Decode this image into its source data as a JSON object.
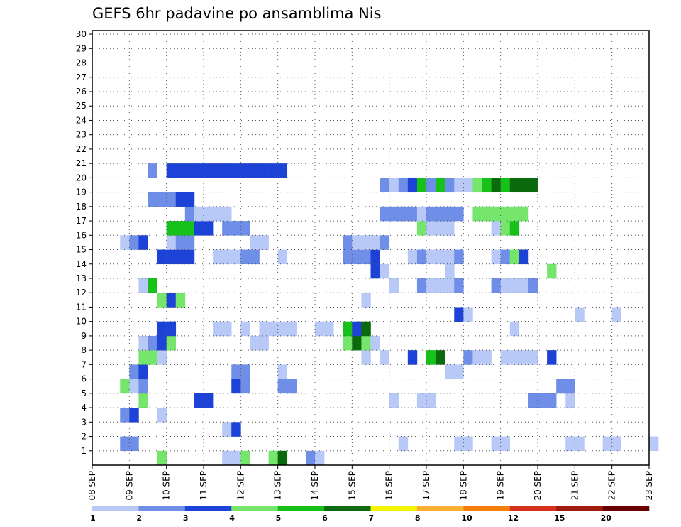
{
  "chart_data": {
    "type": "heatmap",
    "title": "GEFS 6hr padavine po ansamblima Nis",
    "x_ticks": [
      "08 SEP",
      "09 SEP",
      "10 SEP",
      "11 SEP",
      "12 SEP",
      "13 SEP",
      "14 SEP",
      "15 SEP",
      "16 SEP",
      "17 SEP",
      "18 SEP",
      "19 SEP",
      "20 SEP",
      "21 SEP",
      "22 SEP",
      "23 SEP"
    ],
    "y_ticks": [
      "1",
      "2",
      "3",
      "4",
      "5",
      "6",
      "7",
      "8",
      "9",
      "10",
      "11",
      "12",
      "13",
      "14",
      "15",
      "16",
      "17",
      "18",
      "19",
      "20",
      "21",
      "22",
      "23",
      "24",
      "25",
      "26",
      "27",
      "28",
      "29",
      "30"
    ],
    "xlim_steps": [
      0,
      60
    ],
    "ylim": [
      0,
      30
    ],
    "grid": true,
    "colorbar": {
      "labels": [
        "1",
        "2",
        "3",
        "4",
        "5",
        "6",
        "7",
        "8",
        "10",
        "12",
        "15",
        "20"
      ],
      "colors": [
        "#b9c9f7",
        "#6f8ee8",
        "#1c42d8",
        "#76e56c",
        "#16c21a",
        "#0a6a0c",
        "#f4f400",
        "#fbb034",
        "#f57e0c",
        "#d7301c",
        "#a01a0a",
        "#6a0000"
      ]
    },
    "members": [
      {
        "y": 0,
        "cells": [
          [
            7,
            4
          ],
          [
            14,
            1
          ],
          [
            15,
            1
          ],
          [
            16,
            4
          ],
          [
            19,
            4
          ],
          [
            20,
            6
          ],
          [
            23,
            2
          ],
          [
            24,
            1
          ]
        ]
      },
      {
        "y": 1,
        "cells": [
          [
            3,
            2
          ],
          [
            4,
            2
          ],
          [
            33,
            1
          ],
          [
            39,
            1
          ],
          [
            40,
            1
          ],
          [
            43,
            1
          ],
          [
            44,
            1
          ],
          [
            51,
            1
          ],
          [
            52,
            1
          ],
          [
            55,
            1
          ],
          [
            56,
            1
          ],
          [
            60,
            1
          ]
        ]
      },
      {
        "y": 2,
        "cells": [
          [
            14,
            1
          ],
          [
            15,
            3
          ]
        ]
      },
      {
        "y": 3,
        "cells": [
          [
            3,
            2
          ],
          [
            4,
            3
          ],
          [
            7,
            1
          ]
        ]
      },
      {
        "y": 4,
        "cells": [
          [
            5,
            4
          ],
          [
            11,
            3
          ],
          [
            12,
            3
          ],
          [
            32,
            1
          ],
          [
            35,
            1
          ],
          [
            36,
            1
          ],
          [
            47,
            2
          ],
          [
            48,
            2
          ],
          [
            49,
            2
          ],
          [
            51,
            1
          ]
        ]
      },
      {
        "y": 5,
        "cells": [
          [
            3,
            4
          ],
          [
            4,
            1
          ],
          [
            5,
            2
          ],
          [
            15,
            3
          ],
          [
            16,
            2
          ],
          [
            20,
            2
          ],
          [
            21,
            2
          ],
          [
            50,
            2
          ],
          [
            51,
            2
          ]
        ]
      },
      {
        "y": 6,
        "cells": [
          [
            4,
            2
          ],
          [
            5,
            3
          ],
          [
            15,
            2
          ],
          [
            16,
            2
          ],
          [
            20,
            1
          ],
          [
            38,
            1
          ],
          [
            39,
            1
          ]
        ]
      },
      {
        "y": 7,
        "cells": [
          [
            5,
            4
          ],
          [
            6,
            4
          ],
          [
            7,
            1
          ],
          [
            29,
            1
          ],
          [
            31,
            1
          ],
          [
            34,
            3
          ],
          [
            36,
            5
          ],
          [
            37,
            6
          ],
          [
            40,
            2
          ],
          [
            41,
            1
          ],
          [
            42,
            1
          ],
          [
            44,
            1
          ],
          [
            45,
            1
          ],
          [
            46,
            1
          ],
          [
            47,
            1
          ],
          [
            49,
            3
          ]
        ]
      },
      {
        "y": 8,
        "cells": [
          [
            5,
            1
          ],
          [
            6,
            2
          ],
          [
            7,
            3
          ],
          [
            8,
            4
          ],
          [
            17,
            1
          ],
          [
            18,
            1
          ],
          [
            27,
            4
          ],
          [
            28,
            6
          ],
          [
            29,
            4
          ],
          [
            30,
            1
          ]
        ]
      },
      {
        "y": 9,
        "cells": [
          [
            7,
            3
          ],
          [
            8,
            3
          ],
          [
            13,
            1
          ],
          [
            14,
            1
          ],
          [
            16,
            1
          ],
          [
            18,
            1
          ],
          [
            19,
            1
          ],
          [
            20,
            1
          ],
          [
            21,
            1
          ],
          [
            24,
            1
          ],
          [
            25,
            1
          ],
          [
            27,
            5
          ],
          [
            28,
            3
          ],
          [
            29,
            6
          ],
          [
            45,
            1
          ]
        ]
      },
      {
        "y": 10,
        "cells": [
          [
            39,
            3
          ],
          [
            40,
            1
          ],
          [
            52,
            1
          ],
          [
            56,
            1
          ]
        ]
      },
      {
        "y": 11,
        "cells": [
          [
            7,
            4
          ],
          [
            8,
            3
          ],
          [
            9,
            4
          ],
          [
            29,
            1
          ]
        ]
      },
      {
        "y": 12,
        "cells": [
          [
            5,
            1
          ],
          [
            6,
            5
          ],
          [
            32,
            1
          ],
          [
            35,
            2
          ],
          [
            36,
            1
          ],
          [
            37,
            1
          ],
          [
            38,
            1
          ],
          [
            39,
            2
          ],
          [
            43,
            2
          ],
          [
            44,
            1
          ],
          [
            45,
            1
          ],
          [
            46,
            1
          ],
          [
            47,
            2
          ]
        ]
      },
      {
        "y": 13,
        "cells": [
          [
            30,
            3
          ],
          [
            31,
            1
          ],
          [
            38,
            1
          ],
          [
            49,
            4
          ]
        ]
      },
      {
        "y": 14,
        "cells": [
          [
            7,
            3
          ],
          [
            8,
            3
          ],
          [
            9,
            3
          ],
          [
            10,
            3
          ],
          [
            13,
            1
          ],
          [
            14,
            1
          ],
          [
            15,
            1
          ],
          [
            16,
            2
          ],
          [
            17,
            2
          ],
          [
            20,
            1
          ],
          [
            27,
            2
          ],
          [
            28,
            2
          ],
          [
            29,
            2
          ],
          [
            30,
            3
          ],
          [
            34,
            1
          ],
          [
            35,
            2
          ],
          [
            36,
            1
          ],
          [
            37,
            1
          ],
          [
            38,
            1
          ],
          [
            39,
            2
          ],
          [
            43,
            1
          ],
          [
            44,
            2
          ],
          [
            45,
            4
          ],
          [
            46,
            3
          ]
        ]
      },
      {
        "y": 15,
        "cells": [
          [
            3,
            1
          ],
          [
            4,
            2
          ],
          [
            5,
            3
          ],
          [
            8,
            1
          ],
          [
            9,
            2
          ],
          [
            10,
            2
          ],
          [
            17,
            1
          ],
          [
            18,
            1
          ],
          [
            27,
            2
          ],
          [
            28,
            1
          ],
          [
            29,
            1
          ],
          [
            30,
            1
          ],
          [
            31,
            2
          ]
        ]
      },
      {
        "y": 16,
        "cells": [
          [
            8,
            5
          ],
          [
            9,
            5
          ],
          [
            10,
            5
          ],
          [
            11,
            3
          ],
          [
            12,
            3
          ],
          [
            14,
            2
          ],
          [
            15,
            2
          ],
          [
            16,
            2
          ],
          [
            35,
            4
          ],
          [
            36,
            1
          ],
          [
            37,
            1
          ],
          [
            38,
            1
          ],
          [
            43,
            1
          ],
          [
            44,
            4
          ],
          [
            45,
            5
          ]
        ]
      },
      {
        "y": 17,
        "cells": [
          [
            10,
            2
          ],
          [
            11,
            1
          ],
          [
            12,
            1
          ],
          [
            13,
            1
          ],
          [
            14,
            1
          ],
          [
            31,
            2
          ],
          [
            32,
            2
          ],
          [
            33,
            2
          ],
          [
            34,
            2
          ],
          [
            35,
            1
          ],
          [
            36,
            2
          ],
          [
            37,
            2
          ],
          [
            38,
            2
          ],
          [
            39,
            2
          ],
          [
            41,
            4
          ],
          [
            42,
            4
          ],
          [
            43,
            4
          ],
          [
            44,
            4
          ],
          [
            45,
            4
          ],
          [
            46,
            4
          ]
        ]
      },
      {
        "y": 18,
        "cells": [
          [
            6,
            2
          ],
          [
            7,
            2
          ],
          [
            8,
            2
          ],
          [
            9,
            3
          ],
          [
            10,
            3
          ]
        ]
      },
      {
        "y": 19,
        "cells": [
          [
            31,
            2
          ],
          [
            32,
            1
          ],
          [
            33,
            2
          ],
          [
            34,
            3
          ],
          [
            35,
            5
          ],
          [
            36,
            2
          ],
          [
            37,
            5
          ],
          [
            38,
            2
          ],
          [
            39,
            1
          ],
          [
            40,
            1
          ],
          [
            41,
            4
          ],
          [
            42,
            5
          ],
          [
            43,
            6
          ],
          [
            44,
            5
          ],
          [
            45,
            6
          ],
          [
            46,
            6
          ],
          [
            47,
            6
          ]
        ]
      },
      {
        "y": 20,
        "cells": [
          [
            6,
            2
          ],
          [
            8,
            3
          ],
          [
            9,
            3
          ],
          [
            10,
            3
          ],
          [
            11,
            3
          ],
          [
            12,
            3
          ],
          [
            13,
            3
          ],
          [
            14,
            3
          ],
          [
            15,
            3
          ],
          [
            16,
            3
          ],
          [
            17,
            3
          ],
          [
            18,
            3
          ],
          [
            19,
            3
          ],
          [
            20,
            3
          ]
        ]
      }
    ]
  }
}
